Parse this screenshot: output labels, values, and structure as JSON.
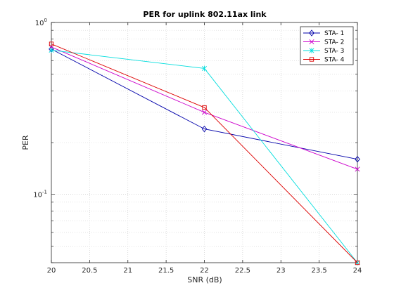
{
  "chart_data": {
    "type": "line",
    "title": "PER for uplink 802.11ax link",
    "xlabel": "SNR (dB)",
    "ylabel": "PER",
    "xlim": [
      20,
      24
    ],
    "ylim": [
      0.04,
      1
    ],
    "yscale": "log",
    "grid": true,
    "legend_position": "top-right",
    "x_ticks": [
      "20",
      "20.5",
      "21",
      "21.5",
      "22",
      "22.5",
      "23",
      "23.5",
      "24"
    ],
    "x": [
      20,
      22,
      24
    ],
    "series": [
      {
        "name": "STA- 1",
        "values": [
          0.7,
          0.24,
          0.16
        ],
        "color": "#0000aa",
        "marker": "diamond"
      },
      {
        "name": "STA- 2",
        "values": [
          0.72,
          0.3,
          0.14
        ],
        "color": "#cc00cc",
        "marker": "x"
      },
      {
        "name": "STA- 3",
        "values": [
          0.69,
          0.54,
          0.04
        ],
        "color": "#00dddd",
        "marker": "asterisk"
      },
      {
        "name": "STA- 4",
        "values": [
          0.75,
          0.32,
          0.04
        ],
        "color": "#dd0000",
        "marker": "square"
      }
    ]
  }
}
